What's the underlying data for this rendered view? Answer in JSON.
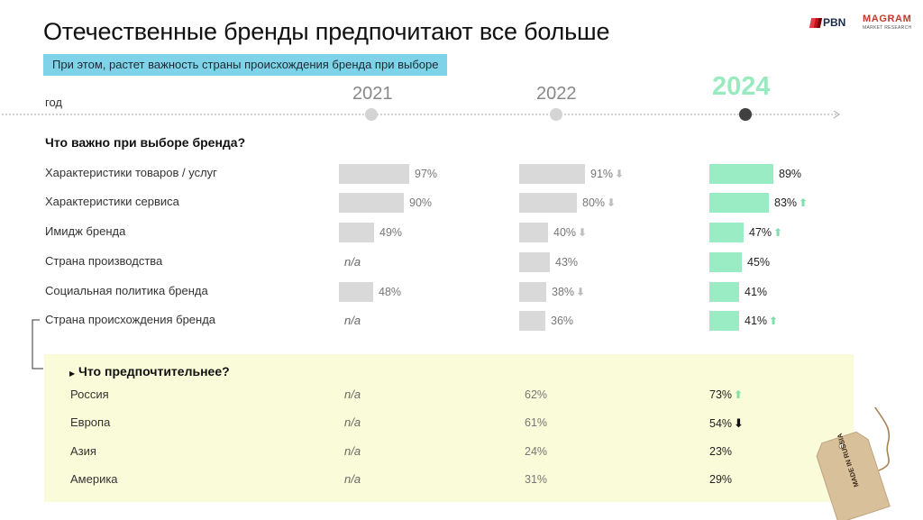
{
  "title": "Отечественные бренды предпочитают все больше",
  "subtitle": "При этом, растет важность страны происхождения бренда при выборе",
  "logos": {
    "pbn": "PBN",
    "magram": "MAGRAM",
    "magram_sub": "MARKET RESEARCH"
  },
  "timeline": {
    "label": "год",
    "years": [
      "2021",
      "2022",
      "2024"
    ]
  },
  "colors": {
    "gray_bar": "#d9d9d9",
    "green_bar": "#99ecc4",
    "year_highlight": "#9aeac0",
    "subtitle_bg": "#7fd3e8",
    "panel_bg": "#fafbd8"
  },
  "tag_text": "MADE IN RUSSIA",
  "chart_data": [
    {
      "type": "bar",
      "title": "Что важно при выборе бренда?",
      "unit": "%",
      "categories": [
        "Характеристики товаров / услуг",
        "Характеристики сервиса",
        "Имидж бренда",
        "Страна производства",
        "Социальная политика бренда",
        "Страна происхождения бренда"
      ],
      "series": [
        {
          "name": "2021",
          "values": [
            97,
            90,
            49,
            null,
            48,
            null
          ],
          "labels": [
            "97%",
            "90%",
            "49%",
            "n/a",
            "48%",
            "n/a"
          ],
          "trend": [
            "",
            "",
            "",
            "",
            "",
            ""
          ]
        },
        {
          "name": "2022",
          "values": [
            91,
            80,
            40,
            43,
            38,
            36
          ],
          "labels": [
            "91%",
            "80%",
            "40%",
            "43%",
            "38%",
            "36%"
          ],
          "trend": [
            "down",
            "down",
            "down",
            "",
            "down",
            ""
          ]
        },
        {
          "name": "2024",
          "values": [
            89,
            83,
            47,
            45,
            41,
            41
          ],
          "labels": [
            "89%",
            "83%",
            "47%",
            "45%",
            "41%",
            "41%"
          ],
          "trend": [
            "",
            "up",
            "up",
            "",
            "",
            "up"
          ]
        }
      ]
    },
    {
      "type": "table",
      "title": "Что предпочтительнее?",
      "categories": [
        "Россия",
        "Европа",
        "Азия",
        "Америка"
      ],
      "series": [
        {
          "name": "2021",
          "labels": [
            "n/a",
            "n/a",
            "n/a",
            "n/a"
          ],
          "values": [
            null,
            null,
            null,
            null
          ],
          "trend": [
            "",
            "",
            "",
            ""
          ]
        },
        {
          "name": "2022",
          "labels": [
            "62%",
            "61%",
            "24%",
            "31%"
          ],
          "values": [
            62,
            61,
            24,
            31
          ],
          "trend": [
            "",
            "",
            "",
            ""
          ]
        },
        {
          "name": "2024",
          "labels": [
            "73%",
            "54%",
            "23%",
            "29%"
          ],
          "values": [
            73,
            54,
            23,
            29
          ],
          "trend": [
            "up",
            "down",
            "",
            ""
          ]
        }
      ]
    }
  ]
}
